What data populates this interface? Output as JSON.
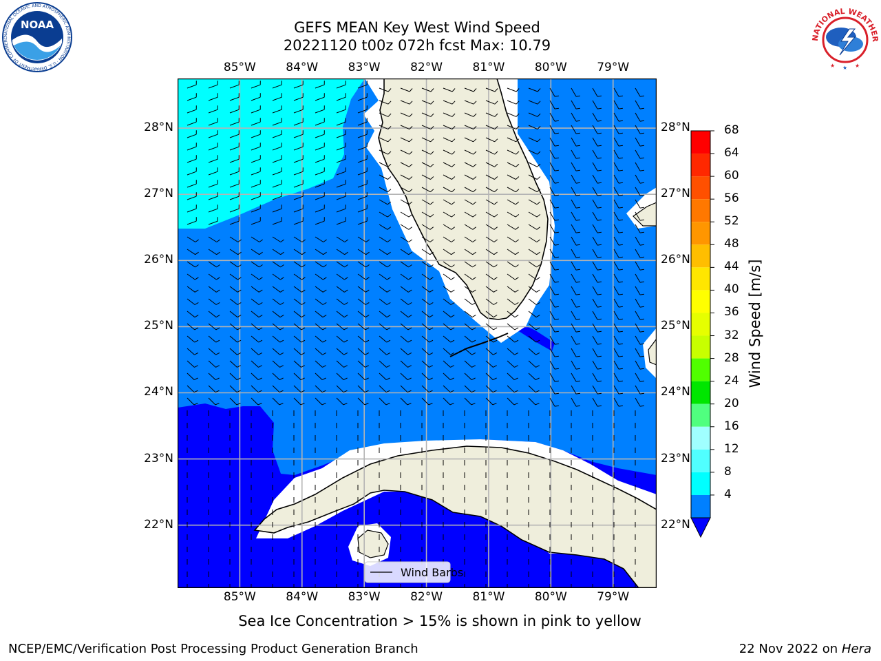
{
  "header": {
    "title_line1": "GEFS MEAN Key West Wind Speed",
    "title_line2": "20221120 t00z 072h fcst   Max: 10.79"
  },
  "logos": {
    "left": {
      "name": "noaa-logo",
      "text": "NOAA",
      "ring_text": "NATIONAL OCEANIC AND ATMOSPHERIC ADMINISTRATION · U.S. DEPARTMENT OF COMMERCE"
    },
    "right": {
      "name": "nws-logo",
      "ring_text": "NATIONAL WEATHER SERVICE"
    }
  },
  "map": {
    "lon_labels": [
      "85°W",
      "84°W",
      "83°W",
      "82°W",
      "81°W",
      "80°W",
      "79°W"
    ],
    "lat_labels": [
      "28°N",
      "27°N",
      "26°N",
      "25°N",
      "24°N",
      "23°N",
      "22°N"
    ],
    "lon_range": [
      -86,
      -78.3
    ],
    "lat_range": [
      21.05,
      28.75
    ],
    "gridlines": true,
    "field": "wind speed",
    "colors": {
      "land": "#efeedc",
      "band_4_8": "#0080ff",
      "band_8_12": "#00ffff",
      "below_4": "#0000ff"
    },
    "legend": {
      "label": "Wind Barbs",
      "placement": "bottom-center"
    }
  },
  "colorbar": {
    "title": "Wind Speed [m/s]",
    "ticks": [
      "68",
      "64",
      "60",
      "56",
      "52",
      "48",
      "44",
      "40",
      "36",
      "32",
      "28",
      "24",
      "20",
      "16",
      "12",
      "8",
      "4"
    ],
    "colors": [
      "#ff0000",
      "#ff2800",
      "#ff5000",
      "#ff7800",
      "#ff9600",
      "#ffbe00",
      "#ffe600",
      "#ffff00",
      "#e6ff00",
      "#c8ff00",
      "#50ff00",
      "#00e600",
      "#50ff7f",
      "#a0ffff",
      "#50ffff",
      "#00ffff",
      "#0080ff"
    ],
    "extend_color": "#0000ff"
  },
  "note": "Sea Ice Concentration > 15% is shown in pink to yellow",
  "footer": {
    "left": "NCEP/EMC/Verification Post Processing Product Generation Branch",
    "right_date": "22 Nov 2022 on",
    "right_host": "Hera"
  }
}
